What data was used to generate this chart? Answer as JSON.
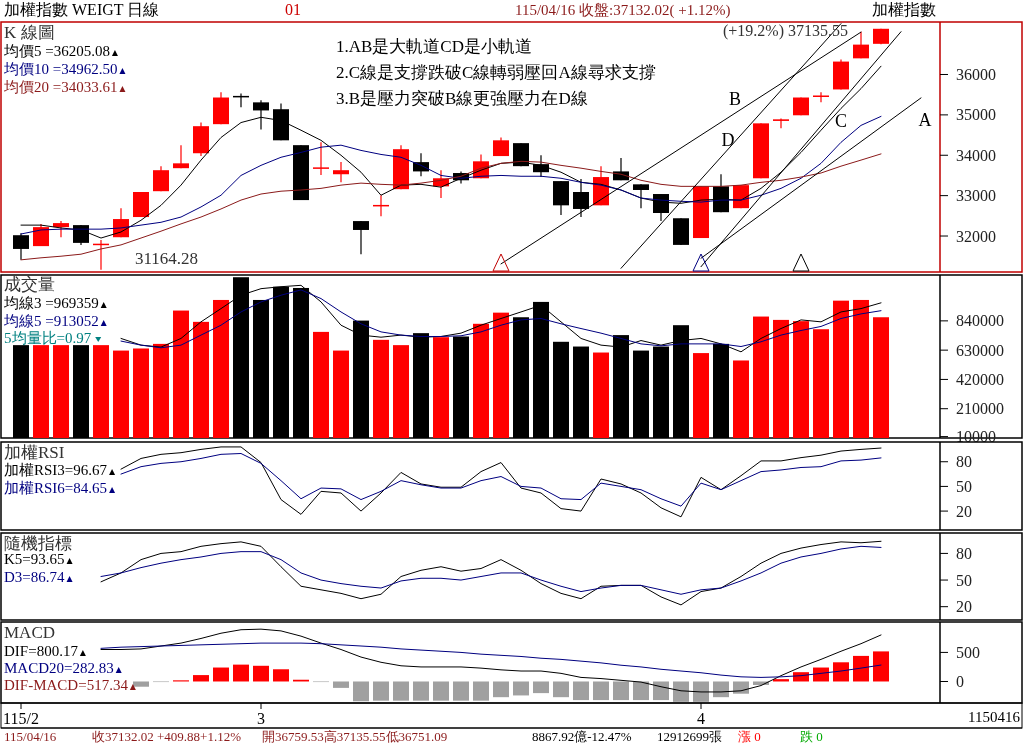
{
  "chart_data": [
    {
      "type": "candlestick",
      "title": "加權指數 WEIGT 日線",
      "subtitle": "K 線圖",
      "categories": [
        null,
        null,
        null,
        null,
        null,
        null,
        null,
        null,
        null,
        null,
        null,
        null,
        null,
        null,
        null,
        null,
        null,
        null,
        null,
        null,
        null,
        null,
        null,
        null,
        null,
        null,
        null,
        null,
        null,
        null,
        null,
        null,
        null,
        null,
        null,
        null,
        null,
        null,
        null,
        null,
        null,
        null,
        null,
        null,
        null,
        null
      ],
      "ylim": [
        31109,
        37300
      ],
      "yticks": [
        32000,
        33000,
        34000,
        35000,
        36000
      ],
      "tick_labels": "y",
      "legend": "top left",
      "ohlc": [
        [
          32020,
          32070,
          31410,
          31680
        ],
        [
          31750,
          32300,
          31750,
          32220
        ],
        [
          32220,
          32370,
          31970,
          32320
        ],
        [
          32270,
          32270,
          31780,
          31830
        ],
        [
          31790,
          31900,
          31164.28,
          31810
        ],
        [
          31970,
          32690,
          31970,
          32420
        ],
        [
          32470,
          33090,
          32470,
          33090
        ],
        [
          33110,
          33730,
          33110,
          33630
        ],
        [
          33680,
          34250,
          33680,
          33800
        ],
        [
          34050,
          34810,
          33980,
          34720
        ],
        [
          34770,
          35560,
          34770,
          35430
        ],
        [
          35470,
          35530,
          35190,
          35440
        ],
        [
          35310,
          35360,
          34640,
          35110
        ],
        [
          35140,
          35280,
          34370,
          34370
        ],
        [
          34250,
          34250,
          32890,
          32890
        ],
        [
          33680,
          34320,
          33510,
          33700
        ],
        [
          33530,
          33830,
          33330,
          33630
        ],
        [
          32370,
          32370,
          31550,
          32150
        ],
        [
          32740,
          33010,
          32490,
          32770
        ],
        [
          33160,
          34250,
          33160,
          34150
        ],
        [
          33830,
          34050,
          33480,
          33600
        ],
        [
          33230,
          33630,
          32940,
          33430
        ],
        [
          33560,
          33600,
          33300,
          33380
        ],
        [
          33430,
          34020,
          33430,
          33850
        ],
        [
          33980,
          34440,
          33980,
          34370
        ],
        [
          34300,
          34300,
          33730,
          33730
        ],
        [
          33780,
          34000,
          33460,
          33580
        ],
        [
          33360,
          33360,
          32520,
          32760
        ],
        [
          33090,
          33410,
          32470,
          32670
        ],
        [
          32760,
          33730,
          32760,
          33460
        ],
        [
          33600,
          33930,
          33380,
          33380
        ],
        [
          33280,
          33280,
          32690,
          33140
        ],
        [
          33040,
          33040,
          32370,
          32570
        ],
        [
          32440,
          32440,
          31780,
          31780
        ],
        [
          31950,
          33230,
          31950,
          33230
        ],
        [
          33230,
          33530,
          32590,
          32590
        ],
        [
          32690,
          33260,
          32690,
          33260
        ],
        [
          33430,
          34790,
          33430,
          34790
        ],
        [
          34850,
          34910,
          34670,
          34890
        ],
        [
          34990,
          35430,
          34990,
          35430
        ],
        [
          35460,
          35560,
          35310,
          35480
        ],
        [
          35630,
          36370,
          35630,
          36320
        ],
        [
          36400,
          37060,
          36400,
          36740
        ],
        [
          36759.53,
          37135.55,
          36751.09,
          37132.02
        ],
        null,
        null
      ],
      "colors": [
        "#000000",
        "#ff0000",
        "#ff0000",
        "#000000",
        "#ff0000",
        "#ff0000",
        "#ff0000",
        "#ff0000",
        "#ff0000",
        "#ff0000",
        "#ff0000",
        "#000000",
        "#000000",
        "#000000",
        "#000000",
        "#ff0000",
        "#ff0000",
        "#000000",
        "#ff0000",
        "#ff0000",
        "#000000",
        "#ff0000",
        "#000000",
        "#ff0000",
        "#ff0000",
        "#000000",
        "#000000",
        "#000000",
        "#000000",
        "#ff0000",
        "#000000",
        "#000000",
        "#000000",
        "#000000",
        "#ff0000",
        "#000000",
        "#ff0000",
        "#ff0000",
        "#ff0000",
        "#ff0000",
        "#ff0000",
        "#ff0000",
        "#ff0000",
        "#ff0000",
        null,
        null
      ],
      "series": [
        {
          "type": "line",
          "name": "均價5 =36205.08",
          "color": "#000000",
          "values": [
            32270,
            32270,
            32200,
            32150,
            31950,
            32100,
            32390,
            32760,
            33260,
            33880,
            34440,
            34810,
            34940,
            34860,
            34620,
            34370,
            34000,
            33580,
            33010,
            33260,
            33280,
            33210,
            33430,
            33630,
            33800,
            33830,
            33750,
            33580,
            33330,
            33280,
            33140,
            32940,
            32840,
            32810,
            32890,
            32910,
            32890,
            33180,
            33580,
            34070,
            34620,
            35160,
            35650,
            36205.08,
            null,
            null
          ]
        },
        {
          "type": "line",
          "name": "均價10 =34962.50",
          "color": "#000080",
          "values": [
            32050,
            32150,
            32170,
            32170,
            32170,
            32200,
            32270,
            32340,
            32470,
            32720,
            33010,
            33500,
            33750,
            33950,
            34070,
            34200,
            34250,
            34120,
            34020,
            33950,
            33750,
            33500,
            33430,
            33480,
            33500,
            33480,
            33480,
            33430,
            33330,
            33260,
            33140,
            32940,
            32890,
            32860,
            32840,
            32890,
            32890,
            33010,
            33180,
            33430,
            33800,
            34320,
            34740,
            34962.5,
            null,
            null
          ]
        },
        {
          "type": "line",
          "name": "均價20 =34033.61",
          "color": "#8b1a1a",
          "values": [
            31410,
            31460,
            31500,
            31550,
            31680,
            31780,
            31950,
            32120,
            32300,
            32470,
            32670,
            32890,
            33040,
            33110,
            33140,
            33180,
            33260,
            33310,
            33280,
            33260,
            33310,
            33380,
            33480,
            33680,
            33800,
            33850,
            33830,
            33750,
            33680,
            33600,
            33530,
            33380,
            33280,
            33230,
            33230,
            33230,
            33260,
            33330,
            33380,
            33460,
            33560,
            33730,
            33880,
            34033.61,
            null,
            null
          ]
        },
        {
          "type": "line",
          "color": "#000000",
          "values": [
            null,
            null,
            null,
            null,
            null,
            null,
            null,
            null,
            null,
            null,
            null,
            null,
            null,
            null,
            null,
            null,
            null,
            null,
            null,
            null,
            null,
            null,
            null,
            null,
            31310,
            null,
            null,
            null,
            null,
            null,
            null,
            null,
            null,
            null,
            null,
            null,
            null,
            null,
            null,
            null,
            null,
            null,
            37050,
            null,
            null,
            null
          ]
        },
        {
          "type": "line",
          "color": "#000000",
          "values": [
            null,
            null,
            null,
            null,
            null,
            null,
            null,
            null,
            null,
            null,
            null,
            null,
            null,
            null,
            null,
            null,
            null,
            null,
            null,
            null,
            null,
            null,
            null,
            null,
            null,
            null,
            null,
            null,
            null,
            null,
            null,
            null,
            null,
            null,
            31450,
            null,
            null,
            null,
            null,
            null,
            null,
            null,
            null,
            null,
            null,
            35420
          ]
        },
        {
          "type": "line",
          "color": "#000000",
          "values": [
            null,
            null,
            null,
            null,
            null,
            null,
            null,
            null,
            null,
            null,
            null,
            null,
            null,
            null,
            null,
            null,
            null,
            null,
            null,
            null,
            null,
            null,
            null,
            null,
            null,
            null,
            null,
            null,
            null,
            null,
            31200,
            null,
            null,
            null,
            null,
            null,
            null,
            null,
            null,
            null,
            null,
            37260,
            null,
            null,
            null,
            null
          ]
        },
        {
          "type": "line",
          "color": "#000000",
          "values": [
            null,
            null,
            null,
            null,
            null,
            null,
            null,
            null,
            null,
            null,
            null,
            null,
            null,
            null,
            null,
            null,
            null,
            null,
            null,
            null,
            null,
            null,
            null,
            null,
            null,
            null,
            null,
            null,
            null,
            null,
            null,
            null,
            null,
            null,
            31240,
            null,
            null,
            null,
            null,
            null,
            null,
            null,
            null,
            null,
            37060,
            null
          ]
        }
      ],
      "annotations": [
        "01",
        "115/04/16 收盤:37132.02( +1.12%)",
        "加權指數",
        "1.AB是大軌道CD是小軌道",
        "2.C線是支撐跌破C線轉弱壓回A線尋求支撐",
        "3.B是壓力突破B線更強壓力在D線",
        "A",
        "B",
        "C",
        "D",
        "31164.28",
        "(+19.2%) 37135.55"
      ]
    },
    {
      "type": "bar",
      "title": "成交量",
      "categories": [
        null,
        null,
        null,
        null,
        null,
        null,
        null,
        null,
        null,
        null,
        null,
        null,
        null,
        null,
        null,
        null,
        null,
        null,
        null,
        null,
        null,
        null,
        null,
        null,
        null,
        null,
        null,
        null,
        null,
        null,
        null,
        null,
        null,
        null,
        null,
        null,
        null,
        null,
        null,
        null,
        null,
        null,
        null,
        null,
        null,
        null
      ],
      "ylim": [
        0,
        1169000
      ],
      "yticks": [
        10000,
        210000,
        420000,
        630000,
        840000
      ],
      "tick_labels": "y",
      "legend": "top left",
      "series": [
        {
          "type": "bar",
          "colors": [
            "#000000",
            "#ff0000",
            "#ff0000",
            "#000000",
            "#ff0000",
            "#ff0000",
            "#ff0000",
            "#ff0000",
            "#ff0000",
            "#ff0000",
            "#ff0000",
            "#000000",
            "#000000",
            "#000000",
            "#000000",
            "#ff0000",
            "#ff0000",
            "#000000",
            "#ff0000",
            "#ff0000",
            "#000000",
            "#ff0000",
            "#000000",
            "#ff0000",
            "#ff0000",
            "#000000",
            "#000000",
            "#000000",
            "#000000",
            "#ff0000",
            "#000000",
            "#000000",
            "#000000",
            "#000000",
            "#ff0000",
            "#000000",
            "#ff0000",
            "#ff0000",
            "#ff0000",
            "#ff0000",
            "#ff0000",
            "#ff0000",
            "#ff0000",
            "#ff0000",
            null,
            null
          ],
          "values": [
            666000,
            666000,
            666000,
            666000,
            666000,
            627000,
            642000,
            675000,
            914000,
            833000,
            990000,
            1153000,
            990000,
            1085000,
            1076000,
            761000,
            627000,
            842000,
            704000,
            666000,
            752000,
            723000,
            728000,
            819000,
            899000,
            866000,
            976000,
            690000,
            656000,
            613000,
            738000,
            627000,
            656000,
            809000,
            609000,
            675000,
            556000,
            871000,
            847000,
            838000,
            780000,
            985000,
            990000,
            866000,
            null,
            null
          ]
        },
        {
          "type": "line",
          "name": "均線3 =969359",
          "color": "#000000",
          "values": [
            null,
            null,
            null,
            null,
            null,
            714000,
            666000,
            652000,
            714000,
            833000,
            928000,
            1024000,
            1071000,
            1085000,
            1095000,
            976000,
            809000,
            738000,
            723000,
            738000,
            723000,
            728000,
            752000,
            809000,
            857000,
            904000,
            952000,
            833000,
            714000,
            666000,
            652000,
            699000,
            666000,
            699000,
            714000,
            675000,
            618000,
            714000,
            785000,
            847000,
            833000,
            904000,
            928000,
            969359,
            null,
            null
          ]
        },
        {
          "type": "line",
          "name": "均線5 =913052",
          "color": "#000080",
          "values": [
            null,
            null,
            null,
            null,
            null,
            695000,
            666000,
            647000,
            666000,
            738000,
            809000,
            904000,
            976000,
            1024000,
            1062000,
            1000000,
            904000,
            819000,
            761000,
            738000,
            728000,
            728000,
            733000,
            761000,
            809000,
            847000,
            857000,
            819000,
            785000,
            752000,
            714000,
            675000,
            661000,
            675000,
            675000,
            675000,
            656000,
            690000,
            738000,
            771000,
            800000,
            857000,
            890000,
            913052,
            null,
            null
          ]
        }
      ],
      "annotations": [
        "5均量比=0.97"
      ]
    },
    {
      "type": "line",
      "title": "加權RSI",
      "categories": [
        null,
        null,
        null,
        null,
        null,
        null,
        null,
        null,
        null,
        null,
        null,
        null,
        null,
        null,
        null,
        null,
        null,
        null,
        null,
        null,
        null,
        null,
        null,
        null,
        null,
        null,
        null,
        null,
        null,
        null,
        null,
        null,
        null,
        null,
        null,
        null,
        null,
        null,
        null,
        null,
        null,
        null,
        null,
        null,
        null,
        null
      ],
      "ylim": [
        -3,
        104
      ],
      "yticks": [
        20,
        50,
        80
      ],
      "tick_labels": "y",
      "legend": "top left",
      "series": [
        {
          "name": "加權RSI3=96.67",
          "color": "#000000",
          "values": [
            null,
            null,
            null,
            null,
            null,
            71,
            84,
            89,
            91,
            95,
            98,
            98,
            79,
            34,
            16,
            44,
            42,
            20,
            42,
            67,
            53,
            49,
            49,
            68,
            79,
            48,
            42,
            23,
            20,
            59,
            53,
            42,
            24,
            13,
            61,
            46,
            63,
            81,
            81,
            85,
            88,
            93,
            95,
            96.67,
            null,
            null
          ]
        },
        {
          "name": "加權RSI6=84.65",
          "color": "#000080",
          "values": [
            null,
            null,
            null,
            null,
            null,
            65,
            74,
            78,
            80,
            84,
            89,
            90,
            78,
            57,
            35,
            48,
            47,
            34,
            44,
            57,
            52,
            48,
            48,
            57,
            62,
            50,
            48,
            35,
            34,
            54,
            50,
            46,
            35,
            26,
            54,
            46,
            57,
            68,
            70,
            73,
            74,
            81,
            82,
            84.65,
            null,
            null
          ]
        }
      ]
    },
    {
      "type": "line",
      "title": "隨機指標",
      "categories": [
        null,
        null,
        null,
        null,
        null,
        null,
        null,
        null,
        null,
        null,
        null,
        null,
        null,
        null,
        null,
        null,
        null,
        null,
        null,
        null,
        null,
        null,
        null,
        null,
        null,
        null,
        null,
        null,
        null,
        null,
        null,
        null,
        null,
        null,
        null,
        null,
        null,
        null,
        null,
        null,
        null,
        null,
        null,
        null,
        null,
        null
      ],
      "ylim": [
        5,
        103
      ],
      "yticks": [
        20,
        50,
        80
      ],
      "tick_labels": "y",
      "legend": "top left",
      "series": [
        {
          "name": "K5=93.65",
          "color": "#000000",
          "values": [
            null,
            null,
            null,
            null,
            48,
            58,
            73,
            80,
            82,
            88,
            91,
            93,
            88,
            65,
            43,
            39,
            35,
            29,
            34,
            54,
            61,
            65,
            60,
            63,
            73,
            61,
            46,
            35,
            29,
            43,
            44,
            44,
            31,
            22,
            37,
            41,
            54,
            69,
            80,
            86,
            90,
            93,
            92,
            93.65,
            null,
            null
          ]
        },
        {
          "name": "D3=86.74",
          "color": "#000080",
          "values": [
            null,
            null,
            null,
            null,
            54,
            58,
            64,
            69,
            73,
            76,
            80,
            82,
            82,
            73,
            58,
            50,
            46,
            43,
            41,
            49,
            52,
            52,
            50,
            54,
            58,
            58,
            50,
            43,
            37,
            41,
            44,
            44,
            39,
            34,
            39,
            41,
            49,
            58,
            69,
            76,
            80,
            85,
            88,
            86.74,
            null,
            null
          ]
        }
      ]
    },
    {
      "type": "bar",
      "title": "MACD",
      "categories": [
        "115/2",
        null,
        null,
        null,
        null,
        null,
        null,
        null,
        null,
        null,
        null,
        null,
        "3",
        null,
        null,
        null,
        null,
        null,
        null,
        null,
        null,
        null,
        null,
        null,
        null,
        null,
        null,
        null,
        null,
        null,
        null,
        null,
        null,
        null,
        "4",
        null,
        null,
        null,
        null,
        null,
        null,
        null,
        null,
        null,
        null,
        null
      ],
      "ylim": [
        -370,
        1023
      ],
      "yticks": [
        0,
        500
      ],
      "legend": "left",
      "series": [
        {
          "type": "line",
          "name": "DIF=800.17",
          "color": "#000000",
          "values": [
            null,
            null,
            null,
            null,
            550,
            550,
            560,
            610,
            660,
            740,
            830,
            890,
            900,
            870,
            780,
            660,
            550,
            420,
            330,
            270,
            250,
            250,
            250,
            230,
            200,
            180,
            180,
            140,
            70,
            50,
            20,
            -10,
            -90,
            -160,
            -180,
            -180,
            -160,
            -70,
            100,
            250,
            380,
            520,
            650,
            800.17,
            null,
            null
          ]
        },
        {
          "type": "line",
          "name": "MACD20=282.83",
          "color": "#000080",
          "values": [
            null,
            null,
            null,
            null,
            570,
            590,
            600,
            610,
            620,
            630,
            640,
            650,
            660,
            660,
            660,
            650,
            630,
            610,
            590,
            560,
            540,
            520,
            500,
            470,
            450,
            430,
            400,
            380,
            350,
            320,
            280,
            250,
            210,
            180,
            150,
            110,
            80,
            70,
            80,
            100,
            140,
            180,
            230,
            282.83,
            null,
            null
          ]
        },
        {
          "type": "bar",
          "name": "DIF-MACD=517.34",
          "color": "#8b1a1a",
          "colors": [
            null,
            null,
            null,
            null,
            null,
            null,
            "#a0a0a0",
            "#a0a0a0",
            "#ff0000",
            "#ff0000",
            "#ff0000",
            "#ff0000",
            "#ff0000",
            "#ff0000",
            "#ff0000",
            "#a0a0a0",
            "#a0a0a0",
            "#a0a0a0",
            "#a0a0a0",
            "#a0a0a0",
            "#a0a0a0",
            "#a0a0a0",
            "#a0a0a0",
            "#a0a0a0",
            "#a0a0a0",
            "#a0a0a0",
            "#a0a0a0",
            "#a0a0a0",
            "#a0a0a0",
            "#a0a0a0",
            "#a0a0a0",
            "#a0a0a0",
            "#a0a0a0",
            "#a0a0a0",
            "#a0a0a0",
            "#a0a0a0",
            "#a0a0a0",
            "#a0a0a0",
            "#ff0000",
            "#ff0000",
            "#ff0000",
            "#ff0000",
            "#ff0000",
            "#ff0000",
            null,
            null
          ],
          "values": [
            null,
            null,
            null,
            null,
            null,
            null,
            -90,
            -10,
            20,
            110,
            240,
            290,
            270,
            210,
            30,
            -10,
            -110,
            -340,
            -330,
            -330,
            -330,
            -330,
            -330,
            -330,
            -270,
            -240,
            -200,
            -270,
            -320,
            -320,
            -320,
            -320,
            -320,
            -350,
            -350,
            -270,
            -210,
            -60,
            40,
            160,
            240,
            330,
            440,
            517.34,
            null,
            null
          ]
        }
      ],
      "annotations": [
        "115/04/16",
        "收37132.02 +409.88+1.12%",
        "開36759.53高37135.55低36751.09",
        "8867.92億-12.47%",
        "12912699張",
        "漲 0",
        "跌 0",
        "1150416"
      ]
    }
  ]
}
